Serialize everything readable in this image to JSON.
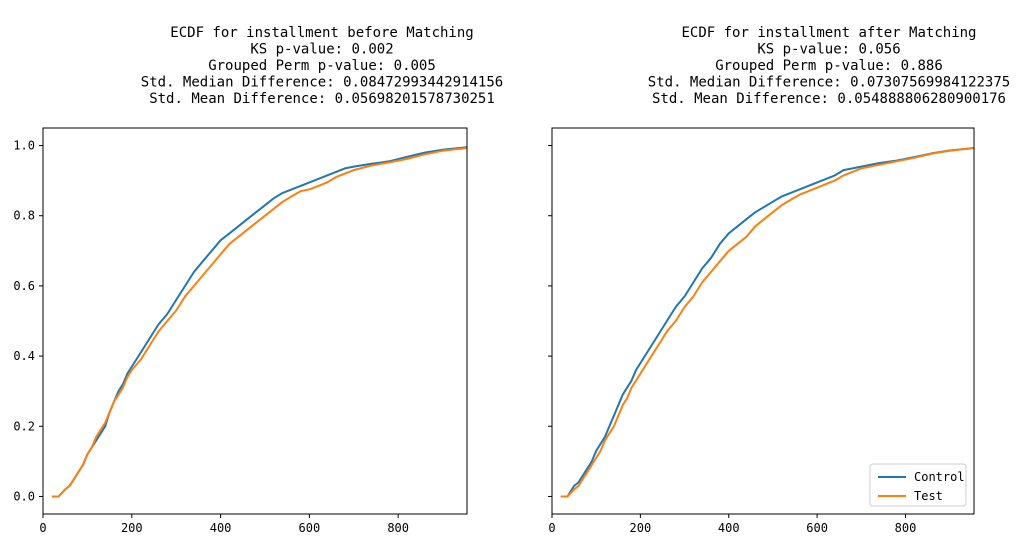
{
  "chart_data": [
    {
      "type": "line",
      "title_lines": [
        "ECDF for installment before Matching",
        "KS p-value: 0.002",
        "Grouped Perm p-value: 0.005",
        "Std. Median Difference: 0.08472993442914156",
        "Std. Mean Difference: 0.05698201578730251"
      ],
      "xlim": [
        0,
        955
      ],
      "ylim": [
        -0.05,
        1.05
      ],
      "xticks": [
        "0",
        "200",
        "400",
        "600",
        "800"
      ],
      "yticks": [
        "0.0",
        "0.2",
        "0.4",
        "0.6",
        "0.8",
        "1.0"
      ],
      "show_ytick_labels": true,
      "legend": false,
      "series": [
        {
          "color": "#1f77b4",
          "x": [
            20,
            35,
            50,
            60,
            70,
            80,
            90,
            100,
            110,
            120,
            130,
            140,
            150,
            160,
            170,
            180,
            190,
            200,
            220,
            240,
            260,
            280,
            300,
            320,
            340,
            360,
            380,
            400,
            420,
            440,
            460,
            480,
            500,
            520,
            540,
            560,
            580,
            600,
            620,
            640,
            660,
            680,
            700,
            740,
            780,
            820,
            860,
            900,
            955
          ],
          "y": [
            0.0,
            0.0,
            0.02,
            0.03,
            0.05,
            0.07,
            0.09,
            0.12,
            0.14,
            0.16,
            0.18,
            0.2,
            0.24,
            0.27,
            0.3,
            0.32,
            0.35,
            0.37,
            0.41,
            0.45,
            0.49,
            0.52,
            0.56,
            0.6,
            0.64,
            0.67,
            0.7,
            0.73,
            0.75,
            0.77,
            0.79,
            0.81,
            0.83,
            0.85,
            0.865,
            0.875,
            0.885,
            0.895,
            0.905,
            0.915,
            0.925,
            0.935,
            0.94,
            0.948,
            0.955,
            0.968,
            0.98,
            0.988,
            0.995
          ]
        },
        {
          "color": "#ff7f0e",
          "x": [
            20,
            35,
            50,
            60,
            70,
            80,
            90,
            100,
            110,
            120,
            130,
            140,
            150,
            160,
            170,
            180,
            190,
            200,
            220,
            240,
            260,
            280,
            300,
            320,
            340,
            360,
            380,
            400,
            420,
            440,
            460,
            480,
            500,
            520,
            540,
            560,
            580,
            600,
            620,
            640,
            660,
            680,
            700,
            740,
            780,
            820,
            860,
            900,
            955
          ],
          "y": [
            0.0,
            0.0,
            0.02,
            0.03,
            0.05,
            0.07,
            0.09,
            0.12,
            0.14,
            0.17,
            0.19,
            0.21,
            0.24,
            0.27,
            0.29,
            0.31,
            0.34,
            0.36,
            0.39,
            0.43,
            0.47,
            0.5,
            0.53,
            0.57,
            0.6,
            0.63,
            0.66,
            0.69,
            0.72,
            0.74,
            0.76,
            0.78,
            0.8,
            0.82,
            0.84,
            0.855,
            0.87,
            0.875,
            0.885,
            0.895,
            0.91,
            0.92,
            0.93,
            0.943,
            0.952,
            0.962,
            0.975,
            0.985,
            0.993
          ]
        }
      ]
    },
    {
      "type": "line",
      "title_lines": [
        "ECDF for installment after Matching",
        "KS p-value: 0.056",
        "Grouped Perm p-value: 0.886",
        "Std. Median Difference: 0.07307569984122375",
        "Std. Mean Difference: 0.054888806280900176"
      ],
      "xlim": [
        0,
        955
      ],
      "ylim": [
        -0.05,
        1.05
      ],
      "xticks": [
        "0",
        "200",
        "400",
        "600",
        "800"
      ],
      "yticks": [
        "0.0",
        "0.2",
        "0.4",
        "0.6",
        "0.8",
        "1.0"
      ],
      "show_ytick_labels": false,
      "legend": true,
      "legend_position": "lower-right",
      "series": [
        {
          "name": "Control",
          "color": "#1f77b4",
          "x": [
            20,
            35,
            50,
            60,
            70,
            80,
            90,
            100,
            110,
            120,
            130,
            140,
            150,
            160,
            170,
            180,
            190,
            200,
            220,
            240,
            260,
            280,
            300,
            320,
            340,
            360,
            380,
            400,
            420,
            440,
            460,
            480,
            500,
            520,
            540,
            560,
            580,
            600,
            620,
            640,
            660,
            680,
            700,
            740,
            780,
            820,
            860,
            900,
            955
          ],
          "y": [
            0.0,
            0.0,
            0.03,
            0.04,
            0.06,
            0.08,
            0.1,
            0.13,
            0.15,
            0.17,
            0.2,
            0.23,
            0.26,
            0.29,
            0.31,
            0.33,
            0.36,
            0.38,
            0.42,
            0.46,
            0.5,
            0.54,
            0.57,
            0.61,
            0.65,
            0.68,
            0.72,
            0.75,
            0.77,
            0.79,
            0.81,
            0.825,
            0.84,
            0.855,
            0.865,
            0.875,
            0.885,
            0.895,
            0.905,
            0.915,
            0.93,
            0.935,
            0.94,
            0.95,
            0.957,
            0.967,
            0.978,
            0.986,
            0.993
          ]
        },
        {
          "name": "Test",
          "color": "#ff7f0e",
          "x": [
            20,
            35,
            50,
            60,
            70,
            80,
            90,
            100,
            110,
            120,
            130,
            140,
            150,
            160,
            170,
            180,
            190,
            200,
            220,
            240,
            260,
            280,
            300,
            320,
            340,
            360,
            380,
            400,
            420,
            440,
            460,
            480,
            500,
            520,
            540,
            560,
            580,
            600,
            620,
            640,
            660,
            680,
            700,
            740,
            780,
            820,
            860,
            900,
            955
          ],
          "y": [
            0.0,
            0.0,
            0.02,
            0.03,
            0.05,
            0.07,
            0.09,
            0.11,
            0.13,
            0.16,
            0.18,
            0.2,
            0.23,
            0.26,
            0.28,
            0.31,
            0.33,
            0.35,
            0.39,
            0.43,
            0.47,
            0.5,
            0.54,
            0.57,
            0.61,
            0.64,
            0.67,
            0.7,
            0.72,
            0.74,
            0.77,
            0.79,
            0.81,
            0.83,
            0.845,
            0.86,
            0.87,
            0.88,
            0.89,
            0.9,
            0.915,
            0.925,
            0.935,
            0.945,
            0.955,
            0.965,
            0.977,
            0.985,
            0.993
          ]
        }
      ]
    }
  ]
}
